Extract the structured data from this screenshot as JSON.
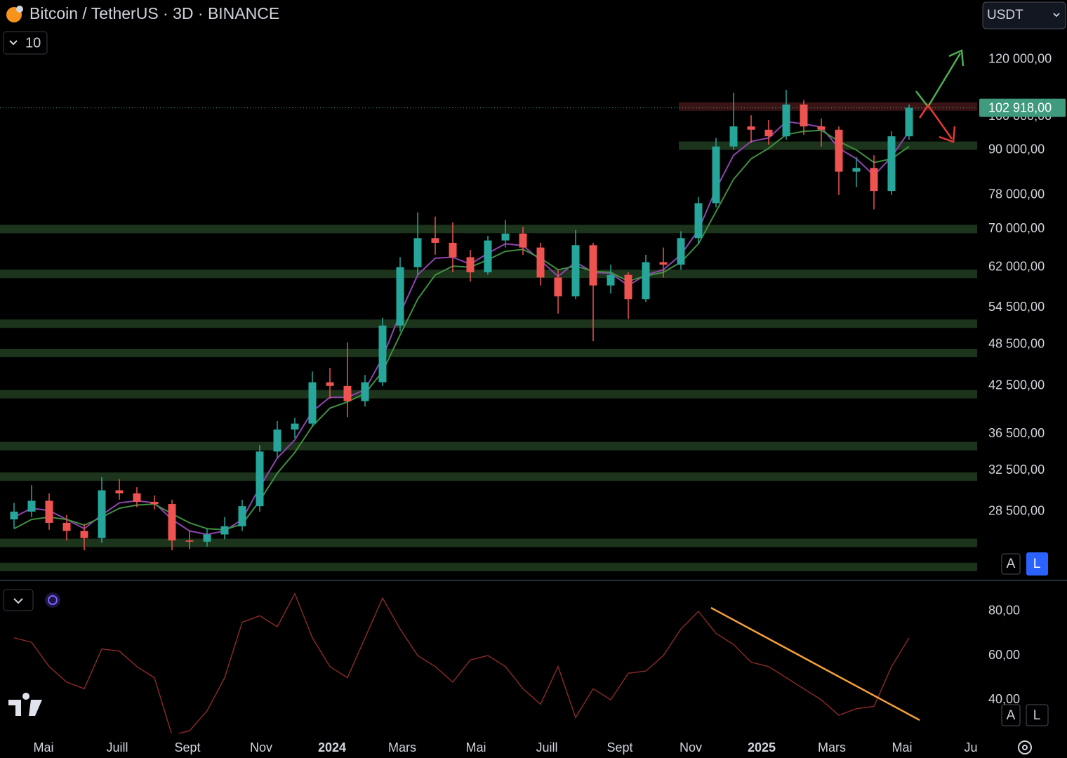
{
  "header": {
    "title": "Bitcoin / TetherUS · 3D · BINANCE",
    "interval_value": "10",
    "currency": "USDT",
    "scale_buttons": [
      "A",
      "L"
    ]
  },
  "chart_data": [
    {
      "type": "candlestick",
      "log_scale": true,
      "xlim": [
        -0.8,
        54.88
      ],
      "ylim": [
        23000,
        145000
      ],
      "yticks": [
        {
          "value": 120000,
          "label": "120 000,00"
        },
        {
          "value": 100000,
          "label": "100 000,00"
        },
        {
          "value": 90000,
          "label": "90 000,00"
        },
        {
          "value": 78000,
          "label": "78 000,00"
        },
        {
          "value": 70000,
          "label": "70 000,00"
        },
        {
          "value": 62000,
          "label": "62 000,00"
        },
        {
          "value": 54500,
          "label": "54 500,00"
        },
        {
          "value": 48500,
          "label": "48 500,00"
        },
        {
          "value": 42500,
          "label": "42 500,00"
        },
        {
          "value": 36500,
          "label": "36 500,00"
        },
        {
          "value": 32500,
          "label": "32 500,00"
        },
        {
          "value": 28500,
          "label": "28 500,00"
        }
      ],
      "up_color": "#26a69a",
      "down_color": "#ef5350",
      "open": [
        27800,
        28500,
        29500,
        27500,
        26800,
        26200,
        30500,
        30200,
        29400,
        29200,
        26000,
        25900,
        26500,
        27200,
        29000,
        34500,
        37000,
        37700,
        43000,
        42500,
        40500,
        43000,
        51500,
        62000,
        68000,
        67000,
        64000,
        61000,
        67500,
        69000,
        66000,
        60000,
        56500,
        66500,
        58500,
        60500,
        56000,
        63000,
        62500,
        68000,
        76000,
        91000,
        97000,
        96000,
        94000,
        104000,
        97000,
        96000,
        84000,
        85000,
        79000,
        94000
      ],
      "high": [
        29300,
        31000,
        30200,
        28200,
        27400,
        31800,
        31600,
        30800,
        30000,
        29600,
        26800,
        27000,
        28000,
        29600,
        35200,
        38000,
        38400,
        44500,
        45000,
        48800,
        44000,
        52800,
        64000,
        73800,
        72800,
        71500,
        65500,
        68500,
        72000,
        70500,
        67000,
        61500,
        69800,
        67000,
        62500,
        61000,
        64500,
        66000,
        69500,
        77500,
        93500,
        108000,
        100500,
        99000,
        109000,
        105500,
        99500,
        97000,
        88000,
        88500,
        95500,
        104000
      ],
      "low": [
        27000,
        28000,
        26900,
        26000,
        25200,
        25800,
        29600,
        28900,
        28700,
        25200,
        25300,
        25500,
        26100,
        26800,
        28500,
        33800,
        36000,
        37400,
        40800,
        38500,
        39800,
        42500,
        50500,
        60500,
        64500,
        61000,
        59200,
        60500,
        66000,
        64500,
        58500,
        53500,
        56000,
        49000,
        57000,
        52600,
        55500,
        60000,
        61500,
        66800,
        75000,
        90000,
        92000,
        91500,
        93000,
        94500,
        91000,
        78000,
        80000,
        74500,
        78000,
        93000
      ],
      "close": [
        28500,
        29500,
        27500,
        26800,
        26200,
        30500,
        30200,
        29400,
        29200,
        26000,
        25900,
        26500,
        27200,
        29000,
        34500,
        37000,
        37700,
        43000,
        42500,
        40500,
        43000,
        51500,
        62000,
        68000,
        67000,
        64000,
        61000,
        67500,
        69000,
        66000,
        60000,
        56500,
        66500,
        58500,
        60500,
        56000,
        63000,
        62500,
        68000,
        76000,
        91000,
        97000,
        96000,
        94000,
        104000,
        97000,
        96000,
        84000,
        85000,
        79000,
        94000,
        102918
      ],
      "overlays": [
        {
          "color": "#8e44ad",
          "values": [
            28000,
            28800,
            28600,
            27800,
            27000,
            28200,
            29300,
            29500,
            29300,
            27800,
            26800,
            26500,
            26800,
            27800,
            30800,
            33800,
            35800,
            39200,
            41000,
            41000,
            42000,
            46500,
            53500,
            60500,
            63800,
            64000,
            62600,
            64800,
            66800,
            66400,
            63400,
            60200,
            63000,
            61000,
            60800,
            58500,
            60500,
            61500,
            64500,
            69800,
            79500,
            88500,
            92500,
            93500,
            98500,
            97800,
            96800,
            90500,
            87500,
            83000,
            88000,
            95500
          ]
        },
        {
          "color": "#3f8f3f",
          "values": [
            27000,
            27800,
            28000,
            27800,
            27300,
            28000,
            28800,
            29100,
            29200,
            28300,
            27500,
            27000,
            26900,
            27400,
            29500,
            32200,
            34400,
            37400,
            39600,
            40400,
            41500,
            44500,
            50000,
            56000,
            60500,
            62200,
            62000,
            63500,
            65200,
            65600,
            63800,
            61500,
            62200,
            61200,
            61000,
            59300,
            60300,
            61000,
            63000,
            66800,
            74000,
            82000,
            87500,
            90500,
            94500,
            95500,
            95800,
            92500,
            90000,
            86500,
            87500,
            91000
          ]
        }
      ],
      "zones": [
        {
          "value": 103360,
          "from": 37.88,
          "color": "#3a1414"
        },
        {
          "value": 91240,
          "from": 37.88,
          "color": "#1c331c"
        },
        {
          "value": 70000,
          "from": -0.8,
          "color": "#1c331c"
        },
        {
          "value": 60700,
          "from": -0.8,
          "color": "#1c331c"
        },
        {
          "value": 51800,
          "from": -0.8,
          "color": "#1c331c"
        },
        {
          "value": 47200,
          "from": -0.8,
          "color": "#1c331c"
        },
        {
          "value": 41400,
          "from": -0.8,
          "color": "#1c331c"
        },
        {
          "value": 35100,
          "from": -0.8,
          "color": "#1c331c"
        },
        {
          "value": 31850,
          "from": -0.8,
          "color": "#1c331c"
        },
        {
          "value": 25800,
          "from": -0.8,
          "color": "#1c331c"
        },
        {
          "value": 23900,
          "from": -0.8,
          "color": "#1c331c"
        }
      ],
      "price_line": {
        "value": 102918,
        "label": "102 918,00",
        "color": "#3f9a7e"
      }
    },
    {
      "type": "line",
      "color": "#8e2a2a",
      "xlim": [
        -0.8,
        54.88
      ],
      "ylim": [
        24.8,
        93
      ],
      "yticks": [
        {
          "value": 80,
          "label": "80,00"
        },
        {
          "value": 60,
          "label": "60,00"
        },
        {
          "value": 40,
          "label": "40,00"
        }
      ],
      "values": [
        68,
        66,
        55,
        48,
        45,
        63,
        62,
        55,
        50,
        24,
        26,
        35,
        50,
        75,
        78,
        73,
        88,
        68,
        55,
        50,
        68,
        86,
        72,
        60,
        55,
        48,
        58,
        60,
        55,
        45,
        38,
        55,
        32,
        45,
        40,
        52,
        53,
        60,
        72,
        80,
        70,
        65,
        57,
        55,
        50,
        45,
        40,
        33,
        36,
        37,
        55,
        68
      ],
      "xticks": [
        {
          "value": 1.68,
          "label": "Mai"
        },
        {
          "value": 5.88,
          "label": "Juill"
        },
        {
          "value": 9.88,
          "label": "Sept"
        },
        {
          "value": 14.08,
          "label": "Nov"
        },
        {
          "value": 18.12,
          "label": "2024"
        },
        {
          "value": 22.12,
          "label": "Mars"
        },
        {
          "value": 26.32,
          "label": "Mai"
        },
        {
          "value": 30.36,
          "label": "Juill"
        },
        {
          "value": 34.52,
          "label": "Sept"
        },
        {
          "value": 38.56,
          "label": "Nov"
        },
        {
          "value": 42.6,
          "label": "2025"
        },
        {
          "value": 46.6,
          "label": "Mars"
        },
        {
          "value": 50.6,
          "label": "Mai"
        },
        {
          "value": 54.52,
          "label": "Ju"
        }
      ]
    }
  ]
}
